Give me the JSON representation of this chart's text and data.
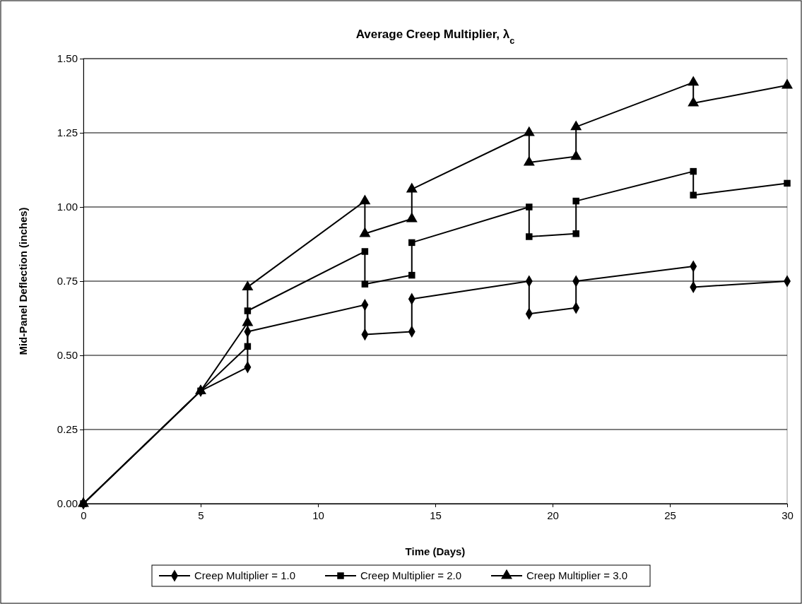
{
  "chart_data": {
    "type": "line",
    "title": "Average Creep Multiplier, λ$_{c}$",
    "xlabel": "Time (Days)",
    "ylabel": "Mid-Panel Deflection (inches)",
    "x": [
      0,
      5,
      7,
      7,
      12,
      12,
      14,
      14,
      19,
      19,
      21,
      21,
      26,
      26,
      30
    ],
    "series": [
      {
        "name": "Creep Multiplier = 1.0",
        "color": "#000000",
        "marker": "diamond",
        "values": [
          0,
          0.38,
          0.46,
          0.58,
          0.67,
          0.57,
          0.58,
          0.69,
          0.75,
          0.64,
          0.66,
          0.75,
          0.8,
          0.73,
          0.75
        ]
      },
      {
        "name": "Creep Multiplier = 2.0",
        "color": "#000000",
        "marker": "square",
        "values": [
          0,
          0.38,
          0.53,
          0.65,
          0.85,
          0.74,
          0.77,
          0.88,
          1.0,
          0.9,
          0.91,
          1.02,
          1.12,
          1.04,
          1.08
        ]
      },
      {
        "name": "Creep Multiplier = 3.0",
        "color": "#000000",
        "marker": "triangle",
        "values": [
          0,
          0.38,
          0.61,
          0.73,
          1.02,
          0.91,
          0.96,
          1.06,
          1.25,
          1.15,
          1.17,
          1.27,
          1.42,
          1.35,
          1.41
        ]
      }
    ],
    "xlim": [
      0,
      30
    ],
    "xticks": [
      0,
      5,
      10,
      15,
      20,
      25,
      30
    ],
    "ylim": [
      0,
      1.5
    ],
    "yticks": [
      {
        "value": 0,
        "label": "0.00"
      },
      {
        "value": 0.25,
        "label": "0.25"
      },
      {
        "value": 0.5,
        "label": "0.50"
      },
      {
        "value": 0.75,
        "label": "0.75"
      },
      {
        "value": 1,
        "label": "1.00"
      },
      {
        "value": 1.25,
        "label": "1.25"
      },
      {
        "value": 1.5,
        "label": "1.50"
      }
    ],
    "grid": "y",
    "legend": "bottom",
    "line_style": "solid"
  }
}
